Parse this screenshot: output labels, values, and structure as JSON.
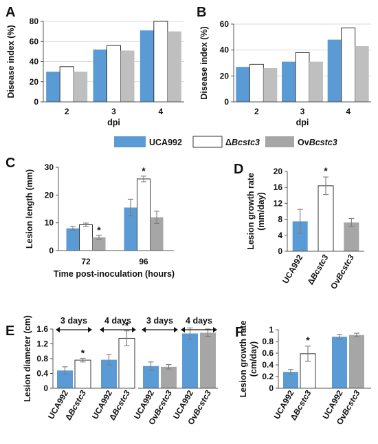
{
  "legend": {
    "items": [
      {
        "label": "UCA992",
        "color": "#5b9bd5"
      },
      {
        "label": "ΔBcstc3",
        "color": "#ffffff"
      },
      {
        "label": "OvBcstc3",
        "color": "#a6a6a6"
      }
    ]
  },
  "colors": {
    "blue": "#5b9bd5",
    "white": "#ffffff",
    "gray": "#a6a6a6",
    "gray_light": "#bfbfbf",
    "edge": "#333333"
  },
  "chart_data": [
    {
      "id": "A",
      "letter": "A",
      "type": "bar",
      "ylabel": "Disease index (%)",
      "xlabel": "dpi",
      "ylim": [
        0,
        80
      ],
      "yticks": [
        0,
        20,
        40,
        60,
        80
      ],
      "categories": [
        "2",
        "3",
        "4"
      ],
      "series": [
        {
          "name": "UCA992",
          "values": [
            30,
            52,
            71
          ]
        },
        {
          "name": "ΔBcstc3",
          "values": [
            35,
            56,
            80
          ]
        },
        {
          "name": "OvBcstc3",
          "values": [
            30,
            51,
            70
          ]
        }
      ],
      "grid": true
    },
    {
      "id": "B",
      "letter": "B",
      "type": "bar",
      "ylabel": "Disease index (%)",
      "xlabel": "dpi",
      "ylim": [
        0,
        60
      ],
      "yticks": [
        0,
        20,
        40,
        60
      ],
      "categories": [
        "2",
        "3",
        "4"
      ],
      "series": [
        {
          "name": "UCA992",
          "values": [
            27,
            31,
            48
          ]
        },
        {
          "name": "ΔBcstc3",
          "values": [
            29,
            38,
            57
          ]
        },
        {
          "name": "OvBcstc3",
          "values": [
            26,
            31,
            43
          ]
        }
      ],
      "grid": true
    },
    {
      "id": "C",
      "letter": "C",
      "type": "bar",
      "ylabel": "Lesion length (mm)",
      "xlabel": "Time post-inoculation (hours)",
      "ylim": [
        0,
        30
      ],
      "yticks": [
        0,
        10,
        20,
        30
      ],
      "categories": [
        "72",
        "96"
      ],
      "series": [
        {
          "name": "UCA992",
          "values": [
            8,
            15.5
          ],
          "errors": [
            0.6,
            3
          ]
        },
        {
          "name": "ΔBcstc3",
          "values": [
            9.3,
            25.8
          ],
          "errors": [
            0.6,
            1
          ]
        },
        {
          "name": "OvBcstc3",
          "values": [
            4.8,
            12
          ],
          "errors": [
            0.7,
            2.2
          ]
        }
      ],
      "significance": [
        [
          0,
          2
        ],
        [
          1,
          1
        ]
      ],
      "grid": false
    },
    {
      "id": "D",
      "letter": "D",
      "type": "bar",
      "ylabel": "Lesion growth rate (mm/day)",
      "ylim": [
        0,
        20
      ],
      "yticks": [
        0,
        4,
        8,
        12,
        16,
        20
      ],
      "categories": [
        "UCA992",
        "ΔBcstc3",
        "OvBcstc3"
      ],
      "values": [
        7.5,
        16.4,
        7.2
      ],
      "errors": [
        3,
        2.2,
        1
      ],
      "significance": [
        1
      ],
      "grid": false
    },
    {
      "id": "E",
      "letter": "E",
      "type": "bar",
      "ylabel": "Lesion diameter (cm)",
      "ylim": [
        0,
        1.6
      ],
      "yticks": [
        0,
        0.4,
        0.8,
        1.2,
        1.6
      ],
      "groups": [
        {
          "day_label": "3 days",
          "bars": [
            {
              "category": "UCA992",
              "value": 0.48,
              "error": 0.1
            },
            {
              "category": "ΔBcstc3",
              "value": 0.76,
              "error": 0.05,
              "significant": true
            }
          ]
        },
        {
          "day_label": "4 days",
          "bars": [
            {
              "category": "UCA992",
              "value": 0.77,
              "error": 0.14
            },
            {
              "category": "ΔBcstc3",
              "value": 1.35,
              "error": 0.2,
              "significant": true
            }
          ]
        },
        {
          "day_label": "3 days",
          "bars": [
            {
              "category": "UCA992",
              "value": 0.6,
              "error": 0.11
            },
            {
              "category": "OvBcstc3",
              "value": 0.58,
              "error": 0.06
            }
          ]
        },
        {
          "day_label": "4 days",
          "bars": [
            {
              "category": "UCA992",
              "value": 1.48,
              "error": 0.15
            },
            {
              "category": "OvBcstc3",
              "value": 1.5,
              "error": 0.1
            }
          ]
        }
      ],
      "grid": false
    },
    {
      "id": "F",
      "letter": "F",
      "type": "bar",
      "ylabel": "Lesion  growth rate (cm/day)",
      "ylim": [
        0,
        1
      ],
      "yticks": [
        0,
        0.2,
        0.4,
        0.6,
        0.8,
        1
      ],
      "groups": [
        {
          "bars": [
            {
              "category": "UCA992",
              "value": 0.28,
              "error": 0.04
            },
            {
              "category": "ΔBcstc3",
              "value": 0.59,
              "error": 0.13,
              "significant": true
            }
          ]
        },
        {
          "bars": [
            {
              "category": "UCA992",
              "value": 0.88,
              "error": 0.04
            },
            {
              "category": "OvBcstc3",
              "value": 0.91,
              "error": 0.03
            }
          ]
        }
      ],
      "grid": false
    }
  ]
}
